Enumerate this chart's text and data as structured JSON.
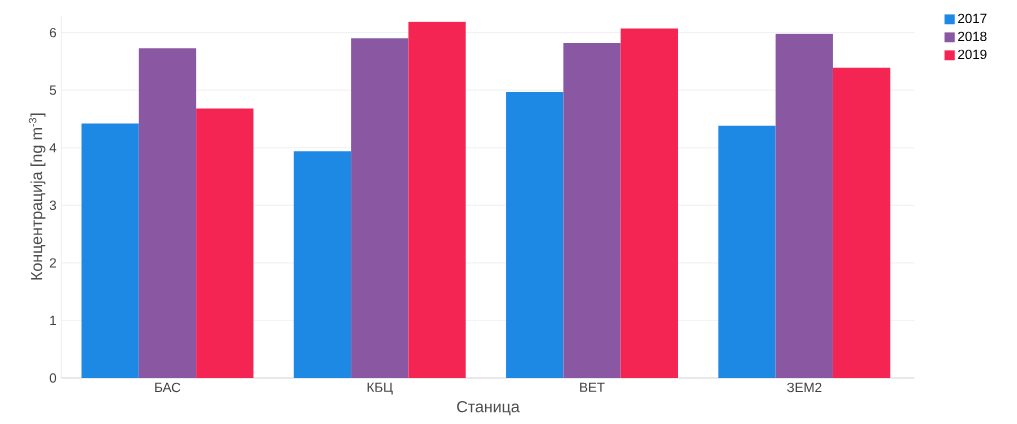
{
  "chart_data": {
    "type": "bar",
    "xlabel": "Станица",
    "ylabel": "Концентрација [ng m$^{-3}$]",
    "categories": [
      "БАС",
      "КБЦ",
      "ВЕТ",
      "ЗЕМ2"
    ],
    "series": [
      {
        "name": "2017",
        "color": "#1e88e5",
        "values": [
          4.42,
          3.94,
          4.97,
          4.38
        ]
      },
      {
        "name": "2018",
        "color": "#8a57a3",
        "values": [
          5.73,
          5.9,
          5.82,
          5.98
        ]
      },
      {
        "name": "2019",
        "color": "#f42552",
        "values": [
          4.68,
          6.19,
          6.07,
          5.39
        ]
      }
    ],
    "ylim": [
      0,
      6.3
    ],
    "yticks": [
      0,
      1,
      2,
      3,
      4,
      5,
      6
    ],
    "grid": "y",
    "legend": "top right"
  }
}
